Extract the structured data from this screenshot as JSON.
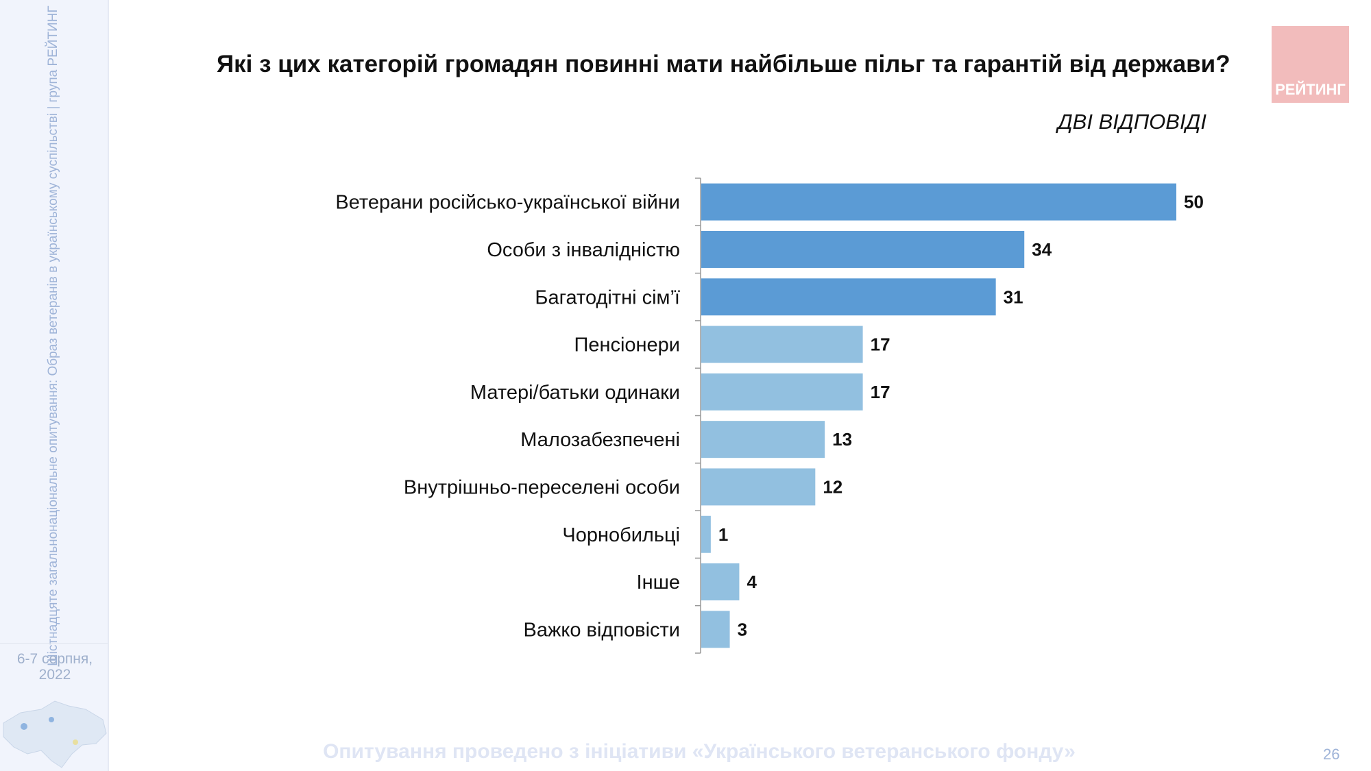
{
  "sidebar": {
    "vertical_text": "Шістнадцяте загальнонаціональне опитування: Образ ветеранів в українському суспільстві | група РЕЙТИНГ",
    "date_line1": "6-7 серпня,",
    "date_line2": "2022"
  },
  "logo": {
    "text": "РЕЙТИНГ",
    "color": "#f2bcbc"
  },
  "footer": {
    "text": "Опитування проведено з ініціативи «Українського ветеранського фонду»",
    "page_number": "26"
  },
  "chart_data": {
    "type": "bar",
    "orientation": "horizontal",
    "title": "Які з цих категорій громадян повинні мати найбільше пільг та гарантій від держави?",
    "subtitle": "ДВІ ВІДПОВІДІ",
    "categories": [
      "Ветерани російсько-української війни",
      "Особи з інвалідністю",
      "Багатодітні сім’ї",
      "Пенсіонери",
      "Матері/батьки одинаки",
      "Малозабезпечені",
      "Внутрішньо-переселені особи",
      "Чорнобильці",
      "Інше",
      "Важко відповісти"
    ],
    "values": [
      50,
      34,
      31,
      17,
      17,
      13,
      12,
      1,
      4,
      3
    ],
    "colors": [
      "#5b9bd5",
      "#5b9bd5",
      "#5b9bd5",
      "#92c0e0",
      "#92c0e0",
      "#92c0e0",
      "#92c0e0",
      "#92c0e0",
      "#92c0e0",
      "#92c0e0"
    ],
    "xlim": [
      0,
      50
    ],
    "grid": false,
    "data_labels": true
  }
}
